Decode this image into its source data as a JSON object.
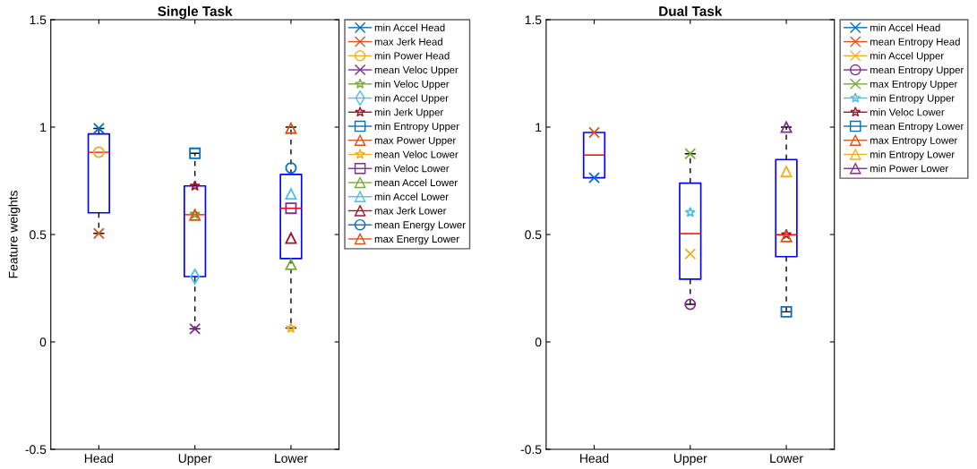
{
  "chart_data": [
    {
      "type": "box",
      "title": "Single Task",
      "ylabel": "Feature weights",
      "categories": [
        "Head",
        "Upper",
        "Lower"
      ],
      "ylim": [
        -0.5,
        1.5
      ],
      "yticks": [
        -0.5,
        0,
        0.5,
        1,
        1.5
      ],
      "legend": "right",
      "grid": false,
      "boxes": [
        {
          "low": 0.505,
          "q1": 0.601,
          "median": 0.883,
          "q3": 0.968,
          "high": 0.994
        },
        {
          "low": 0.061,
          "q1": 0.304,
          "median": 0.592,
          "q3": 0.726,
          "high": 0.878
        },
        {
          "low": 0.064,
          "q1": 0.388,
          "median": 0.622,
          "q3": 0.78,
          "high": 1.0
        }
      ],
      "series": [
        {
          "type": "scatter",
          "name": "min Accel Head",
          "color": "#0072bd",
          "marker": "cross",
          "x": [
            "Head"
          ],
          "values": [
            0.994
          ]
        },
        {
          "type": "scatter",
          "name": "max Jerk Head",
          "color": "#d95319",
          "marker": "cross",
          "x": [
            "Head"
          ],
          "values": [
            0.505
          ]
        },
        {
          "type": "scatter",
          "name": "min Power Head",
          "color": "#edb120",
          "marker": "circle",
          "x": [
            "Head"
          ],
          "values": [
            0.883
          ]
        },
        {
          "type": "scatter",
          "name": "mean Veloc Upper",
          "color": "#7e2f8e",
          "marker": "cross",
          "x": [
            "Upper"
          ],
          "values": [
            0.061
          ]
        },
        {
          "type": "scatter",
          "name": "min Veloc Upper",
          "color": "#77ac30",
          "marker": "star",
          "x": [
            "Upper"
          ],
          "values": [
            0.595
          ]
        },
        {
          "type": "scatter",
          "name": "min Accel Upper",
          "color": "#4dbeee",
          "marker": "diamond",
          "x": [
            "Upper"
          ],
          "values": [
            0.304
          ]
        },
        {
          "type": "scatter",
          "name": "min Jerk Upper",
          "color": "#a2142f",
          "marker": "star",
          "x": [
            "Upper"
          ],
          "values": [
            0.726
          ]
        },
        {
          "type": "scatter",
          "name": "min Entropy Upper",
          "color": "#0072bd",
          "marker": "square",
          "x": [
            "Upper"
          ],
          "values": [
            0.878
          ]
        },
        {
          "type": "scatter",
          "name": "max Power Upper",
          "color": "#d95319",
          "marker": "triangle",
          "x": [
            "Upper"
          ],
          "values": [
            0.59
          ]
        },
        {
          "type": "scatter",
          "name": "mean Veloc Lower",
          "color": "#edb120",
          "marker": "star",
          "x": [
            "Lower"
          ],
          "values": [
            0.064
          ]
        },
        {
          "type": "scatter",
          "name": "min Veloc Lower",
          "color": "#7e2f8e",
          "marker": "square",
          "x": [
            "Lower"
          ],
          "values": [
            0.622
          ]
        },
        {
          "type": "scatter",
          "name": "mean Accel Lower",
          "color": "#77ac30",
          "marker": "triangle",
          "x": [
            "Lower"
          ],
          "values": [
            0.361
          ]
        },
        {
          "type": "scatter",
          "name": "min Accel Lower",
          "color": "#4dbeee",
          "marker": "triangle",
          "x": [
            "Lower"
          ],
          "values": [
            0.689
          ]
        },
        {
          "type": "scatter",
          "name": "max Jerk Lower",
          "color": "#a2142f",
          "marker": "triangle",
          "x": [
            "Lower"
          ],
          "values": [
            0.483
          ]
        },
        {
          "type": "scatter",
          "name": "mean Energy Lower",
          "color": "#0072bd",
          "marker": "circle",
          "x": [
            "Lower"
          ],
          "values": [
            0.81
          ]
        },
        {
          "type": "scatter",
          "name": "max Energy Lower",
          "color": "#d95319",
          "marker": "triangle",
          "x": [
            "Lower"
          ],
          "values": [
            0.995
          ]
        }
      ]
    },
    {
      "type": "box",
      "title": "Dual Task",
      "categories": [
        "Head",
        "Upper",
        "Lower"
      ],
      "ylim": [
        -0.5,
        1.5
      ],
      "yticks": [
        -0.5,
        0,
        0.5,
        1,
        1.5
      ],
      "legend": "right",
      "grid": false,
      "boxes": [
        {
          "low": 0.764,
          "q1": 0.764,
          "median": 0.87,
          "q3": 0.975,
          "high": 0.975
        },
        {
          "low": 0.175,
          "q1": 0.292,
          "median": 0.504,
          "q3": 0.739,
          "high": 0.876
        },
        {
          "low": 0.14,
          "q1": 0.397,
          "median": 0.499,
          "q3": 0.849,
          "high": 1.0
        }
      ],
      "series": [
        {
          "type": "scatter",
          "name": "min Accel Head",
          "color": "#0072bd",
          "marker": "cross",
          "x": [
            "Head"
          ],
          "values": [
            0.764
          ]
        },
        {
          "type": "scatter",
          "name": "mean Entropy Head",
          "color": "#d95319",
          "marker": "cross",
          "x": [
            "Head"
          ],
          "values": [
            0.975
          ]
        },
        {
          "type": "scatter",
          "name": "min Accel Upper",
          "color": "#edb120",
          "marker": "cross",
          "x": [
            "Upper"
          ],
          "values": [
            0.41
          ]
        },
        {
          "type": "scatter",
          "name": "mean Entropy Upper",
          "color": "#7e2f8e",
          "marker": "circle",
          "x": [
            "Upper"
          ],
          "values": [
            0.175
          ]
        },
        {
          "type": "scatter",
          "name": "max Entropy Upper",
          "color": "#77ac30",
          "marker": "cross",
          "x": [
            "Upper"
          ],
          "values": [
            0.876
          ]
        },
        {
          "type": "scatter",
          "name": "min Entropy Upper",
          "color": "#4dbeee",
          "marker": "star",
          "x": [
            "Upper"
          ],
          "values": [
            0.603
          ]
        },
        {
          "type": "scatter",
          "name": "min Veloc Lower",
          "color": "#a2142f",
          "marker": "star",
          "x": [
            "Lower"
          ],
          "values": [
            0.5
          ]
        },
        {
          "type": "scatter",
          "name": "mean Entropy Lower",
          "color": "#0072bd",
          "marker": "square",
          "x": [
            "Lower"
          ],
          "values": [
            0.14
          ]
        },
        {
          "type": "scatter",
          "name": "max Entropy Lower",
          "color": "#d95319",
          "marker": "triangle",
          "x": [
            "Lower"
          ],
          "values": [
            0.49
          ]
        },
        {
          "type": "scatter",
          "name": "min Entropy Lower",
          "color": "#edb120",
          "marker": "triangle",
          "x": [
            "Lower"
          ],
          "values": [
            0.793
          ]
        },
        {
          "type": "scatter",
          "name": "min Power Lower",
          "color": "#7e2f8e",
          "marker": "triangle",
          "x": [
            "Lower"
          ],
          "values": [
            1.0
          ]
        }
      ]
    }
  ]
}
